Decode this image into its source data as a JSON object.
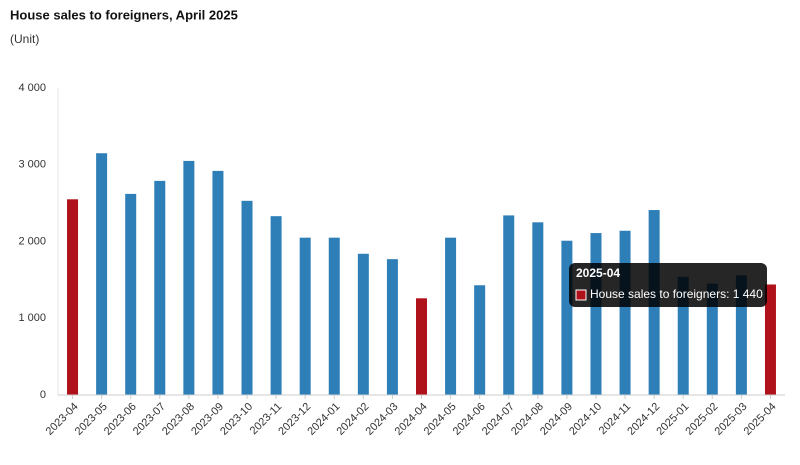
{
  "chart_data": {
    "type": "bar",
    "title": "House sales to foreigners, April 2025",
    "subtitle": "(Unit)",
    "categories": [
      "2023-04",
      "2023-05",
      "2023-06",
      "2023-07",
      "2023-08",
      "2023-09",
      "2023-10",
      "2023-11",
      "2023-12",
      "2024-01",
      "2024-02",
      "2024-03",
      "2024-04",
      "2024-05",
      "2024-06",
      "2024-07",
      "2024-08",
      "2024-09",
      "2024-10",
      "2024-11",
      "2024-12",
      "2025-01",
      "2025-02",
      "2025-03",
      "2025-04"
    ],
    "series": [
      {
        "name": "House sales to foreigners",
        "values": [
          2550,
          3150,
          2620,
          2790,
          3050,
          2920,
          2530,
          2330,
          2050,
          2050,
          1840,
          1770,
          1260,
          2050,
          1430,
          2340,
          2250,
          2010,
          2110,
          2140,
          2410,
          1540,
          1450,
          1560,
          1440
        ],
        "colors": [
          "#b0121b",
          "#2e7fb8",
          "#2e7fb8",
          "#2e7fb8",
          "#2e7fb8",
          "#2e7fb8",
          "#2e7fb8",
          "#2e7fb8",
          "#2e7fb8",
          "#2e7fb8",
          "#2e7fb8",
          "#2e7fb8",
          "#b0121b",
          "#2e7fb8",
          "#2e7fb8",
          "#2e7fb8",
          "#2e7fb8",
          "#2e7fb8",
          "#2e7fb8",
          "#2e7fb8",
          "#2e7fb8",
          "#2e7fb8",
          "#2e7fb8",
          "#2e7fb8",
          "#b0121b"
        ]
      }
    ],
    "ylim": [
      0,
      4000
    ],
    "yticks": [
      {
        "value": 0,
        "label": "0"
      },
      {
        "value": 1000,
        "label": "1 000"
      },
      {
        "value": 2000,
        "label": "2 000"
      },
      {
        "value": 3000,
        "label": "3 000"
      },
      {
        "value": 4000,
        "label": "4 000"
      }
    ],
    "grid": false,
    "tooltip": {
      "title": "2025-04",
      "text": "House sales to foreigners: 1 440",
      "color": "#b0121b"
    }
  }
}
